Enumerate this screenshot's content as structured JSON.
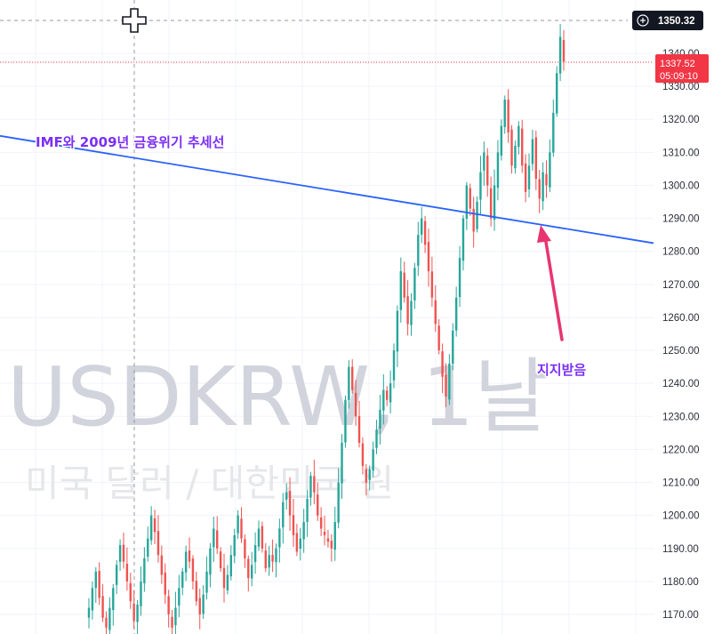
{
  "watermark": {
    "symbol": "USDKRW, 1날",
    "description": "미국 달러 / 대한민국 원"
  },
  "crosshair": {
    "price_label": "1350.32",
    "plus_icon": "plus-circle-icon"
  },
  "last_price": {
    "price": "1337.52",
    "countdown": "05:09:10",
    "color": "#f23645"
  },
  "annotations": {
    "trendline_label": "IMF와 2009년 금융위기 추세선",
    "support_label": "지지받음",
    "text_color": "#7b2ff7",
    "trendline_color": "#2962ff",
    "arrow_color": "#e8346f"
  },
  "colors": {
    "up": "#26a69a",
    "down": "#ef5350",
    "grid": "#f0f3fa"
  },
  "chart_data": {
    "type": "candlestick",
    "symbol": "USDKRW",
    "interval": "1날",
    "ylim": [
      1165,
      1355
    ],
    "y_ticks": [
      1170,
      1180,
      1190,
      1200,
      1210,
      1220,
      1230,
      1240,
      1250,
      1260,
      1270,
      1280,
      1290,
      1300,
      1310,
      1320,
      1330,
      1340
    ],
    "grid": true,
    "series_close": [
      1172,
      1178,
      1183,
      1175,
      1169,
      1166,
      1172,
      1178,
      1185,
      1191,
      1186,
      1180,
      1174,
      1168,
      1173,
      1180,
      1187,
      1193,
      1200,
      1195,
      1188,
      1182,
      1176,
      1170,
      1166,
      1172,
      1178,
      1183,
      1189,
      1186,
      1180,
      1174,
      1170,
      1176,
      1183,
      1190,
      1196,
      1190,
      1184,
      1178,
      1182,
      1188,
      1194,
      1200,
      1193,
      1187,
      1181,
      1185,
      1191,
      1196,
      1190,
      1184,
      1188,
      1186,
      1190,
      1196,
      1204,
      1207,
      1200,
      1194,
      1189,
      1193,
      1198,
      1205,
      1212,
      1207,
      1200,
      1196,
      1194,
      1192,
      1190,
      1198,
      1210,
      1222,
      1235,
      1245,
      1238,
      1230,
      1222,
      1215,
      1210,
      1214,
      1220,
      1226,
      1232,
      1238,
      1235,
      1240,
      1250,
      1262,
      1274,
      1266,
      1258,
      1265,
      1275,
      1285,
      1290,
      1282,
      1274,
      1266,
      1258,
      1250,
      1242,
      1236,
      1246,
      1256,
      1266,
      1278,
      1290,
      1300,
      1293,
      1286,
      1295,
      1304,
      1310,
      1300,
      1290,
      1300,
      1310,
      1318,
      1326,
      1316,
      1306,
      1312,
      1318,
      1306,
      1298,
      1306,
      1314,
      1302,
      1296,
      1304,
      1300,
      1310,
      1322,
      1334,
      1345,
      1337.52
    ],
    "trendline": {
      "label": "IMF와 2009년 금융위기 추세선",
      "from": {
        "x": "start",
        "y": 1315
      },
      "to": {
        "x": "end",
        "y": 1282.5
      }
    },
    "annotations": [
      {
        "text": "IMF와 2009년 금융위기 추세선",
        "type": "label"
      },
      {
        "text": "지지받음",
        "type": "arrow-label"
      }
    ],
    "last_price": 1337.52,
    "crosshair_price": 1350.32
  }
}
